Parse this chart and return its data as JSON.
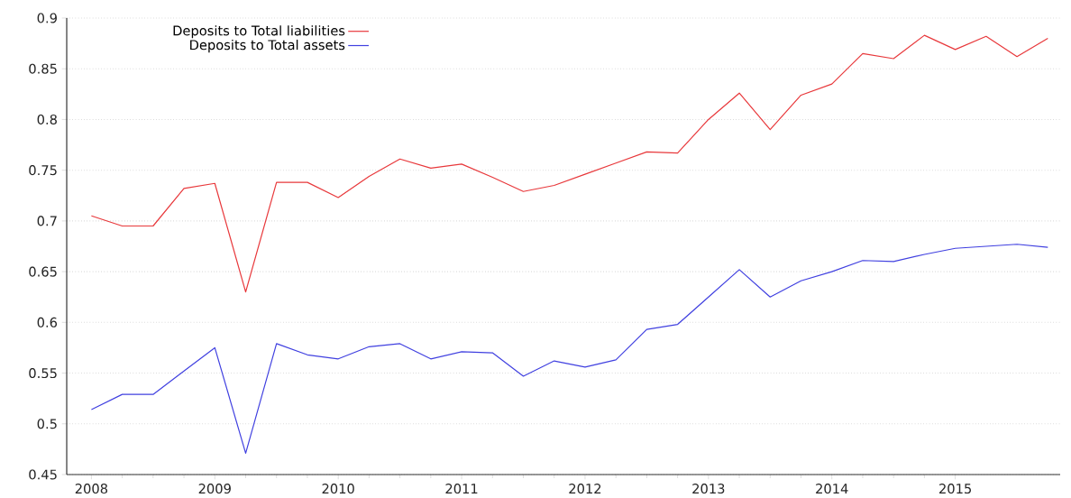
{
  "chart_data": {
    "type": "line",
    "x": [
      2008,
      2008.25,
      2008.5,
      2008.75,
      2009,
      2009.25,
      2009.5,
      2009.75,
      2010,
      2010.25,
      2010.5,
      2010.75,
      2011,
      2011.25,
      2011.5,
      2011.75,
      2012,
      2012.25,
      2012.5,
      2012.75,
      2013,
      2013.25,
      2013.5,
      2013.75,
      2014,
      2014.25,
      2014.5,
      2014.75,
      2015,
      2015.25,
      2015.5,
      2015.75
    ],
    "series": [
      {
        "name": "Deposits to Total liabilities",
        "color": "#e8383b",
        "values": [
          0.705,
          0.695,
          0.695,
          0.732,
          0.737,
          0.63,
          0.738,
          0.738,
          0.723,
          0.744,
          0.761,
          0.752,
          0.756,
          0.743,
          0.729,
          0.735,
          0.746,
          0.757,
          0.768,
          0.767,
          0.8,
          0.826,
          0.79,
          0.824,
          0.835,
          0.865,
          0.86,
          0.883,
          0.869,
          0.882,
          0.862,
          0.88
        ]
      },
      {
        "name": "Deposits to Total assets",
        "color": "#4040e0",
        "values": [
          0.514,
          0.529,
          0.529,
          0.552,
          0.575,
          0.471,
          0.579,
          0.568,
          0.564,
          0.576,
          0.579,
          0.564,
          0.571,
          0.57,
          0.547,
          0.562,
          0.556,
          0.563,
          0.593,
          0.598,
          0.625,
          0.652,
          0.625,
          0.641,
          0.65,
          0.661,
          0.66,
          0.667,
          0.673,
          0.675,
          0.677,
          0.674
        ]
      }
    ],
    "xlim": [
      2007.8,
      2015.85
    ],
    "ylim": [
      0.45,
      0.9
    ],
    "xticks": [
      2008,
      2009,
      2010,
      2011,
      2012,
      2013,
      2014,
      2015
    ],
    "yticks": [
      0.45,
      0.5,
      0.55,
      0.6,
      0.65,
      0.7,
      0.75,
      0.8,
      0.85,
      0.9
    ],
    "grid": "y",
    "legend": "top left",
    "marker": "none",
    "line_style": "solid"
  }
}
